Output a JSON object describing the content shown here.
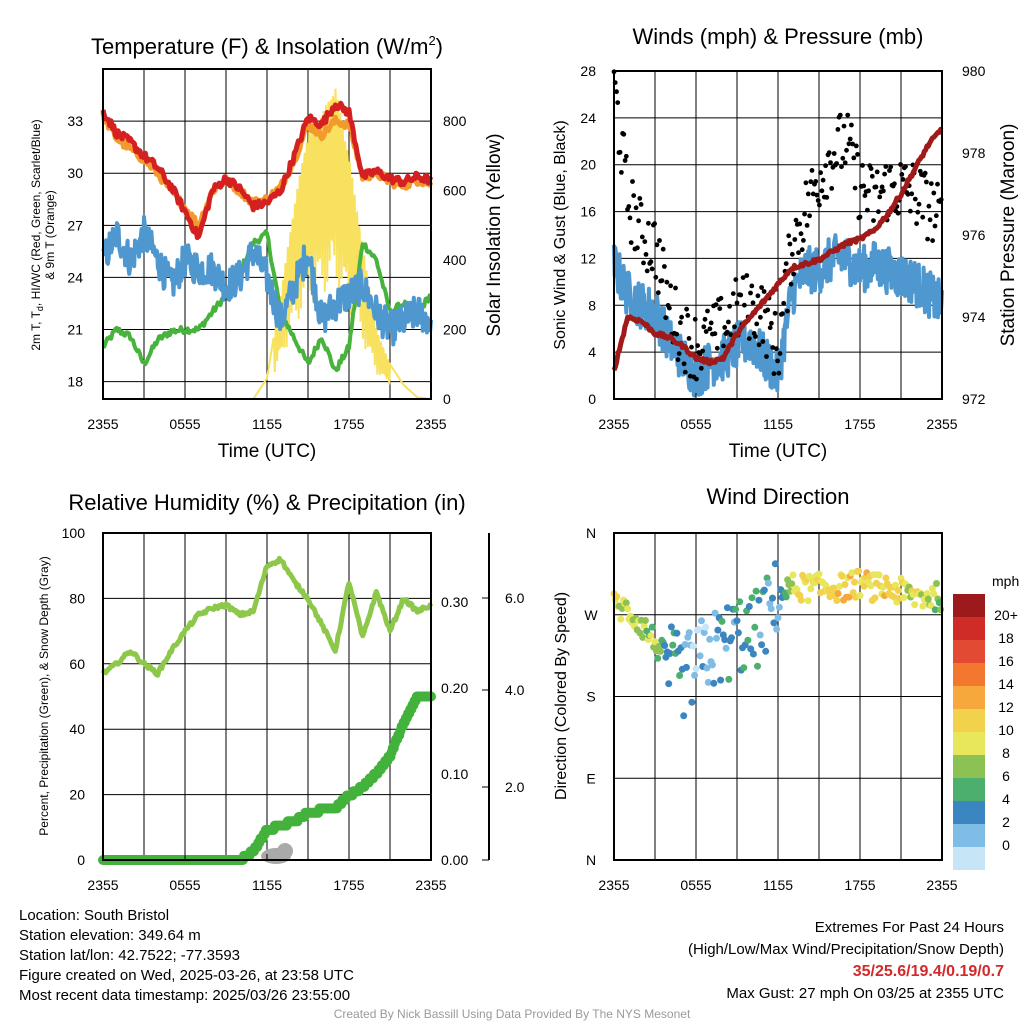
{
  "colors": {
    "temp": "#d42020",
    "dewpoint": "#47b23c",
    "heat_index": "#4f98cf",
    "t9m": "#f39a2c",
    "insolation": "#f8e15e",
    "wind": "#4f98cf",
    "gust": "#000000",
    "pressure": "#a01a1a",
    "rh": "#8dc84a",
    "precip": "#43b23c",
    "snow": "#a9a9a9"
  },
  "chart_data": [
    {
      "type": "line",
      "title": "Temperature (F) & Insolation (W/m²)",
      "xlabel": "Time (UTC)",
      "ylabel_left": "2m T, Td, HI/WC (Red, Green, Scarlet/Blue) & 9m T (Orange)",
      "ylabel_right": "Solar Insolation (Yellow)",
      "x_ticks": [
        "2355",
        "0555",
        "1155",
        "1755",
        "2355"
      ],
      "ylim": [
        17,
        36
      ],
      "y_ticks": [
        "18",
        "21",
        "24",
        "27",
        "30",
        "33"
      ],
      "y2lim": [
        0,
        950
      ],
      "y2_ticks": [
        "0",
        "200",
        "400",
        "600",
        "800"
      ],
      "x_hours": [
        0,
        1,
        2,
        3,
        4,
        5,
        6,
        7,
        8,
        9,
        10,
        11,
        12,
        13,
        14,
        15,
        16,
        17,
        18,
        19,
        20,
        21,
        22,
        23,
        24
      ],
      "series": [
        {
          "values": [
            33.6,
            32.3,
            31.8,
            31.0,
            30.3,
            29.2,
            27.8,
            26.3,
            29.0,
            29.7,
            29.1,
            28.1,
            28.3,
            29.0,
            31.0,
            33.2,
            32.8,
            34.0,
            33.5,
            29.8,
            30.1,
            29.7,
            29.5,
            29.8,
            29.6
          ]
        },
        {
          "values": [
            20.0,
            21.0,
            20.6,
            19.0,
            20.4,
            20.9,
            21.0,
            21.0,
            22.0,
            23.0,
            24.3,
            26.0,
            26.5,
            22.0,
            20.5,
            19.0,
            20.6,
            18.6,
            20.0,
            26.0,
            25.0,
            22.0,
            22.5,
            22.0,
            23.0
          ]
        },
        {
          "values": [
            25.0,
            26.5,
            25.0,
            26.5,
            25.0,
            23.5,
            25.0,
            24.5,
            24.5,
            23.5,
            24.0,
            25.5,
            24.0,
            21.5,
            23.5,
            25.5,
            21.5,
            22.5,
            23.0,
            23.5,
            22.0,
            21.0,
            21.5,
            22.0,
            21.5
          ]
        },
        {
          "values": [
            33.3,
            32.0,
            31.4,
            30.8,
            30.0,
            29.0,
            28.0,
            27.0,
            29.0,
            29.6,
            29.0,
            28.3,
            28.5,
            29.2,
            30.8,
            32.8,
            32.2,
            33.0,
            32.8,
            29.8,
            30.0,
            29.5,
            29.3,
            29.6,
            29.4
          ]
        },
        {
          "values": [
            0,
            0,
            0,
            0,
            0,
            0,
            0,
            0,
            0,
            0,
            0,
            0,
            60,
            300,
            560,
            770,
            820,
            900,
            700,
            440,
            200,
            100,
            40,
            5,
            0
          ]
        }
      ]
    },
    {
      "type": "line",
      "title": "Winds (mph) & Pressure (mb)",
      "xlabel": "Time (UTC)",
      "ylabel_left": "Sonic Wind & Gust (Blue, Black)",
      "ylabel_right": "Station Pressure (Maroon)",
      "x_ticks": [
        "2355",
        "0555",
        "1155",
        "1755",
        "2355"
      ],
      "ylim": [
        0,
        28
      ],
      "y_ticks": [
        "0",
        "4",
        "8",
        "12",
        "16",
        "20",
        "24",
        "28"
      ],
      "y2lim": [
        972,
        980
      ],
      "y2_ticks": [
        "972",
        "974",
        "976",
        "978",
        "980"
      ],
      "x_hours": [
        0,
        1,
        2,
        3,
        4,
        5,
        6,
        7,
        8,
        9,
        10,
        11,
        12,
        13,
        14,
        15,
        16,
        17,
        18,
        19,
        20,
        21,
        22,
        23,
        24
      ],
      "series": [
        {
          "values": [
            11.5,
            9.0,
            8.0,
            7.5,
            5.0,
            3.5,
            2.0,
            3.0,
            3.5,
            4.5,
            5.0,
            3.5,
            2.0,
            9.0,
            11.0,
            11.0,
            12.0,
            12.0,
            11.0,
            11.5,
            11.0,
            10.5,
            10.0,
            9.0,
            8.0
          ]
        },
        {
          "values": [
            27.0,
            17.0,
            14.0,
            13.0,
            8.0,
            5.5,
            4.5,
            5.0,
            6.0,
            7.5,
            8.0,
            7.0,
            4.0,
            13.0,
            16.0,
            19.0,
            21.0,
            22.0,
            18.0,
            17.0,
            18.0,
            18.0,
            17.5,
            16.5,
            15.0
          ]
        },
        {
          "values": [
            972.7,
            974.0,
            973.9,
            973.6,
            973.5,
            973.3,
            973.0,
            972.9,
            973.0,
            973.6,
            974.0,
            974.4,
            974.8,
            975.2,
            975.3,
            975.4,
            975.6,
            975.8,
            975.9,
            976.1,
            976.5,
            977.0,
            977.6,
            978.2,
            978.6
          ]
        }
      ]
    },
    {
      "type": "line",
      "title": "Relative Humidity (%) & Precipitation (in)",
      "ylabel_left": "Percent, Precipitation (Green), & Snow Depth (Gray)",
      "x_ticks": [
        "2355",
        "0555",
        "1155",
        "1755",
        "2355"
      ],
      "ylim": [
        0,
        100
      ],
      "y_ticks": [
        "0",
        "20",
        "40",
        "60",
        "80",
        "100"
      ],
      "y2lim": [
        0,
        0.38
      ],
      "y2_ticks": [
        "0.00",
        "0.10",
        "0.20",
        "0.30"
      ],
      "y3_ticks": [
        "2.0",
        "4.0",
        "6.0"
      ],
      "x_hours": [
        0,
        1,
        2,
        3,
        4,
        5,
        6,
        7,
        8,
        9,
        10,
        11,
        12,
        13,
        14,
        15,
        16,
        17,
        18,
        19,
        20,
        21,
        22,
        23,
        24
      ],
      "series": [
        {
          "values": [
            57,
            60,
            64,
            60,
            57,
            64,
            70,
            75,
            77,
            78,
            75,
            76,
            90,
            92,
            85,
            80,
            72,
            64,
            85,
            68,
            82,
            70,
            80,
            76,
            78
          ]
        },
        {
          "values": [
            0,
            0,
            0,
            0,
            0,
            0,
            0,
            0,
            0,
            0,
            0,
            0.01,
            0.035,
            0.04,
            0.045,
            0.055,
            0.058,
            0.06,
            0.075,
            0.085,
            0.1,
            0.12,
            0.16,
            0.19,
            0.19
          ]
        },
        {
          "values": [
            0,
            0,
            0,
            0,
            0,
            0,
            0,
            0,
            0,
            0,
            0,
            0,
            0,
            0.3,
            0,
            0,
            0,
            0,
            0,
            0,
            0,
            0,
            0,
            0,
            0
          ]
        }
      ]
    },
    {
      "type": "scatter",
      "title": "Wind Direction",
      "ylabel_left": "Direction (Colored By Speed)",
      "x_ticks": [
        "2355",
        "0555",
        "1155",
        "1755",
        "2355"
      ],
      "y_ticks": [
        "N",
        "E",
        "S",
        "W",
        "N"
      ],
      "ylim": [
        0,
        360
      ],
      "legend_title": "mph",
      "legend_labels": [
        "20+",
        "18",
        "16",
        "14",
        "12",
        "10",
        "8",
        "6",
        "4",
        "2",
        "0"
      ],
      "legend_colors": [
        "#9c1a1c",
        "#cf2b27",
        "#e34a33",
        "#f4772f",
        "#f7a83c",
        "#f2d14d",
        "#e8e65a",
        "#8cc153",
        "#4caf6d",
        "#3b85c1",
        "#7fbce6",
        "#c6e6f8"
      ]
    }
  ],
  "footer": {
    "location": "Location: South Bristol",
    "elevation": "Station elevation: 349.64 m",
    "latlon": "Station lat/lon: 42.7522; -77.3593",
    "created": "Figure created on Wed, 2025-03-26, at 23:58 UTC",
    "recent": "Most recent data timestamp: 2025/03/26 23:55:00",
    "extremes_title": "Extremes For Past 24 Hours",
    "extremes_sub": "(High/Low/Max Wind/Precipitation/Snow Depth)",
    "extremes_values": "35/25.6/19.4/0.19/0.7",
    "max_gust": "Max Gust: 27 mph On 03/25 at 2355 UTC",
    "credit": "Created By Nick Bassill Using Data Provided By The NYS Mesonet"
  }
}
